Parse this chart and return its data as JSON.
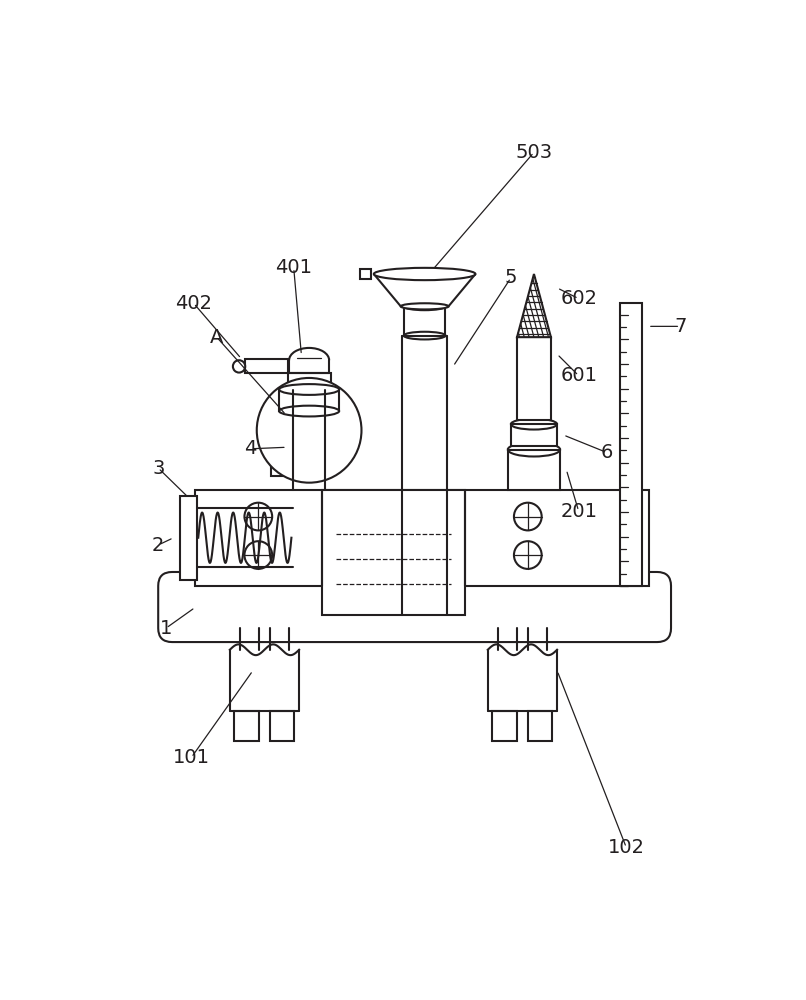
{
  "bg_color": "#ffffff",
  "line_color": "#231f20",
  "line_width": 1.5,
  "thin_line": 0.9,
  "fig_width": 8.06,
  "fig_height": 10.0
}
